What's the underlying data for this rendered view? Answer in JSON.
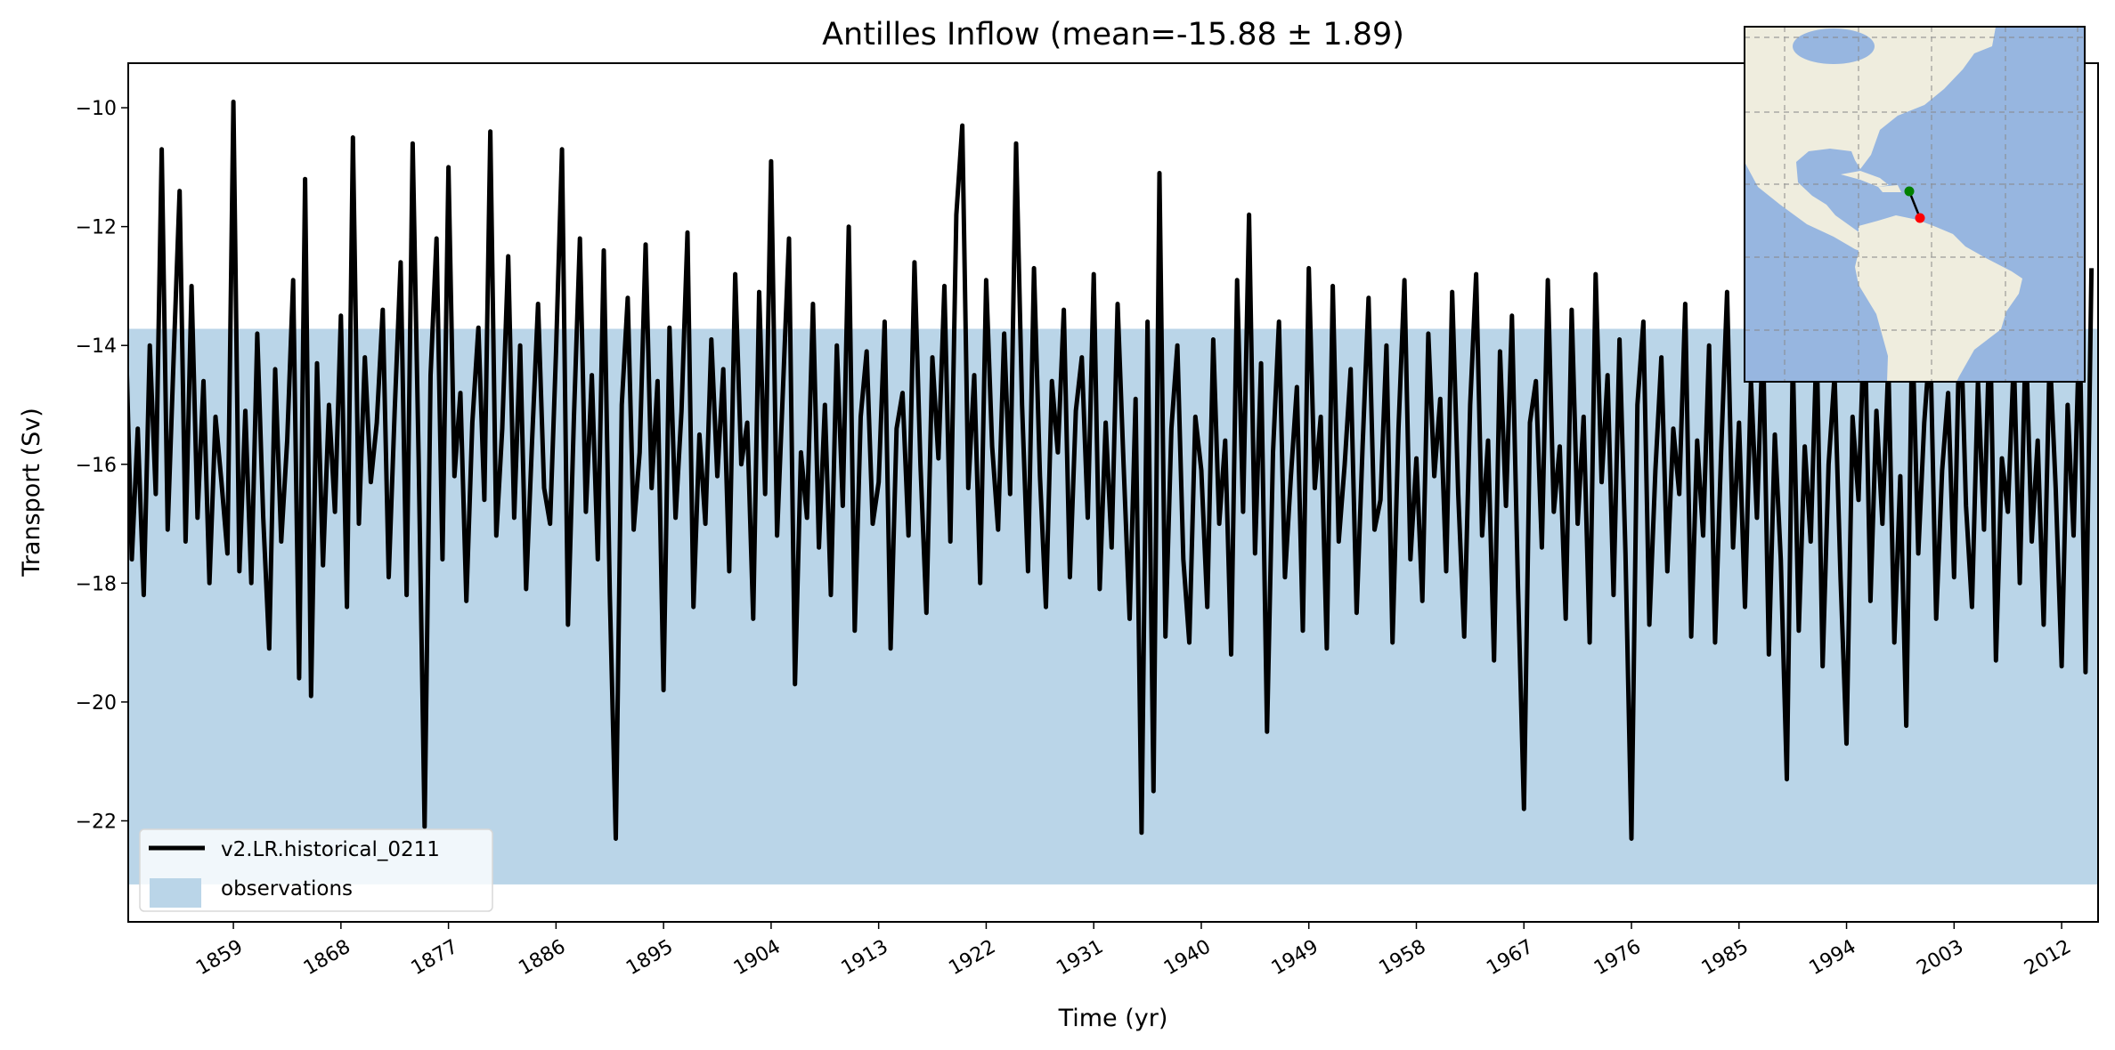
{
  "chart_data": {
    "type": "line",
    "title": "Antilles Inflow (mean=-15.88 ± 1.89)",
    "xlabel": "Time (yr)",
    "ylabel": "Transport (Sv)",
    "xlim": [
      1850.2,
      2015.05
    ],
    "ylim": [
      -23.7,
      -9.25
    ],
    "x_first": 1850.0,
    "x_last": 2014.5,
    "x_ticks": [
      "1859",
      "1868",
      "1877",
      "1886",
      "1895",
      "1904",
      "1913",
      "1922",
      "1931",
      "1940",
      "1949",
      "1958",
      "1967",
      "1976",
      "1985",
      "1994",
      "2003",
      "2012"
    ],
    "y_ticks": [
      "−10",
      "−12",
      "−14",
      "−16",
      "−18",
      "−20",
      "−22"
    ],
    "y_tick_values": [
      -10,
      -12,
      -14,
      -16,
      -18,
      -20,
      -22
    ],
    "grid": false,
    "legend_position": "lower-left",
    "series": [
      {
        "name": "v2.LR.historical_0211",
        "color": "#000000",
        "values": [
          -13.8,
          -17.6,
          -15.4,
          -18.2,
          -14.0,
          -16.5,
          -10.7,
          -17.1,
          -14.2,
          -11.4,
          -17.3,
          -13.0,
          -16.9,
          -14.6,
          -18.0,
          -15.2,
          -16.3,
          -17.5,
          -9.9,
          -17.8,
          -15.1,
          -18.0,
          -13.8,
          -16.9,
          -19.1,
          -14.4,
          -17.3,
          -15.6,
          -12.9,
          -19.6,
          -11.2,
          -19.9,
          -14.3,
          -17.7,
          -15.0,
          -16.8,
          -13.5,
          -18.4,
          -10.5,
          -17.0,
          -14.2,
          -16.3,
          -15.3,
          -13.4,
          -17.9,
          -15.1,
          -12.6,
          -18.2,
          -10.6,
          -15.9,
          -22.1,
          -14.5,
          -12.2,
          -17.6,
          -11.0,
          -16.2,
          -14.8,
          -18.3,
          -15.3,
          -13.7,
          -16.6,
          -10.4,
          -17.2,
          -15.4,
          -12.5,
          -16.9,
          -14.0,
          -18.1,
          -15.6,
          -13.3,
          -16.4,
          -17.0,
          -14.1,
          -10.7,
          -18.7,
          -15.2,
          -12.2,
          -16.8,
          -14.5,
          -17.6,
          -12.4,
          -18.2,
          -22.3,
          -15.0,
          -13.2,
          -17.1,
          -15.8,
          -12.3,
          -16.4,
          -14.6,
          -19.8,
          -13.7,
          -16.9,
          -15.1,
          -12.1,
          -18.4,
          -15.5,
          -17.0,
          -13.9,
          -16.2,
          -14.4,
          -17.8,
          -12.8,
          -16.0,
          -15.3,
          -18.6,
          -13.1,
          -16.5,
          -10.9,
          -17.2,
          -14.7,
          -12.2,
          -19.7,
          -15.8,
          -16.9,
          -13.3,
          -17.4,
          -15.0,
          -18.2,
          -14.0,
          -16.7,
          -12.0,
          -18.8,
          -15.2,
          -14.1,
          -17.0,
          -16.3,
          -13.6,
          -19.1,
          -15.4,
          -14.8,
          -17.2,
          -12.6,
          -16.0,
          -18.5,
          -14.2,
          -15.9,
          -13.0,
          -17.3,
          -11.8,
          -10.3,
          -16.4,
          -14.5,
          -18.0,
          -12.9,
          -15.7,
          -17.1,
          -13.8,
          -16.5,
          -10.6,
          -15.0,
          -17.8,
          -12.7,
          -16.2,
          -18.4,
          -14.6,
          -15.8,
          -13.4,
          -17.9,
          -15.1,
          -14.2,
          -16.9,
          -12.8,
          -18.1,
          -15.3,
          -17.4,
          -13.3,
          -16.0,
          -18.6,
          -14.9,
          -22.2,
          -13.6,
          -21.5,
          -11.1,
          -18.9,
          -15.4,
          -14.0,
          -17.6,
          -19.0,
          -15.2,
          -16.1,
          -18.4,
          -13.9,
          -17.0,
          -15.6,
          -19.2,
          -12.9,
          -16.8,
          -11.8,
          -17.5,
          -14.3,
          -20.5,
          -15.8,
          -13.6,
          -17.9,
          -16.2,
          -14.7,
          -18.8,
          -12.7,
          -16.4,
          -15.2,
          -19.1,
          -13.0,
          -17.3,
          -16.0,
          -14.4,
          -18.5,
          -15.7,
          -13.2,
          -17.1,
          -16.6,
          -14.0,
          -19.0,
          -15.4,
          -12.9,
          -17.6,
          -15.9,
          -18.3,
          -13.8,
          -16.2,
          -14.9,
          -17.8,
          -13.1,
          -16.5,
          -18.9,
          -15.0,
          -12.8,
          -17.2,
          -15.6,
          -19.3,
          -14.1,
          -16.7,
          -13.5,
          -18.0,
          -21.8,
          -15.3,
          -14.6,
          -17.4,
          -12.9,
          -16.8,
          -15.7,
          -18.6,
          -13.4,
          -17.0,
          -15.2,
          -19.0,
          -12.8,
          -16.3,
          -14.5,
          -18.2,
          -13.9,
          -17.5,
          -22.3,
          -15.0,
          -13.6,
          -18.7,
          -16.1,
          -14.2,
          -17.8,
          -15.4,
          -16.5,
          -13.3,
          -18.9,
          -15.6,
          -17.2,
          -14.0,
          -19.0,
          -15.8,
          -13.1,
          -17.4,
          -15.3,
          -18.4,
          -14.6,
          -16.9,
          -13.8,
          -19.2,
          -15.5,
          -17.6,
          -21.3,
          -14.2,
          -18.8,
          -15.7,
          -17.3,
          -13.9,
          -19.4,
          -16.0,
          -14.5,
          -17.9,
          -20.7,
          -15.2,
          -16.6,
          -13.4,
          -18.3,
          -15.1,
          -17.0,
          -14.3,
          -19.0,
          -16.2,
          -20.4,
          -13.7,
          -17.5,
          -15.3,
          -13.9,
          -18.6,
          -16.1,
          -14.8,
          -17.9,
          -13.2,
          -16.7,
          -18.4,
          -14.6,
          -17.1,
          -13.5,
          -19.3,
          -15.9,
          -16.8,
          -14.2,
          -18.0,
          -13.8,
          -17.3,
          -15.6,
          -18.7,
          -14.1,
          -16.4,
          -19.4,
          -15.0,
          -17.2,
          -13.6,
          -19.5,
          -12.7
        ]
      }
    ],
    "bands": [
      {
        "name": "observations",
        "y_range": [
          -23.07,
          -13.72
        ],
        "color": "#bad5e8"
      }
    ],
    "inset_map": {
      "region": "Atlantic / Caribbean",
      "land_color": "#efedde",
      "ocean_color": "#97b6e0",
      "section_start_color": "#008000",
      "section_end_color": "#ff0000",
      "gridlines": "dashed"
    }
  }
}
